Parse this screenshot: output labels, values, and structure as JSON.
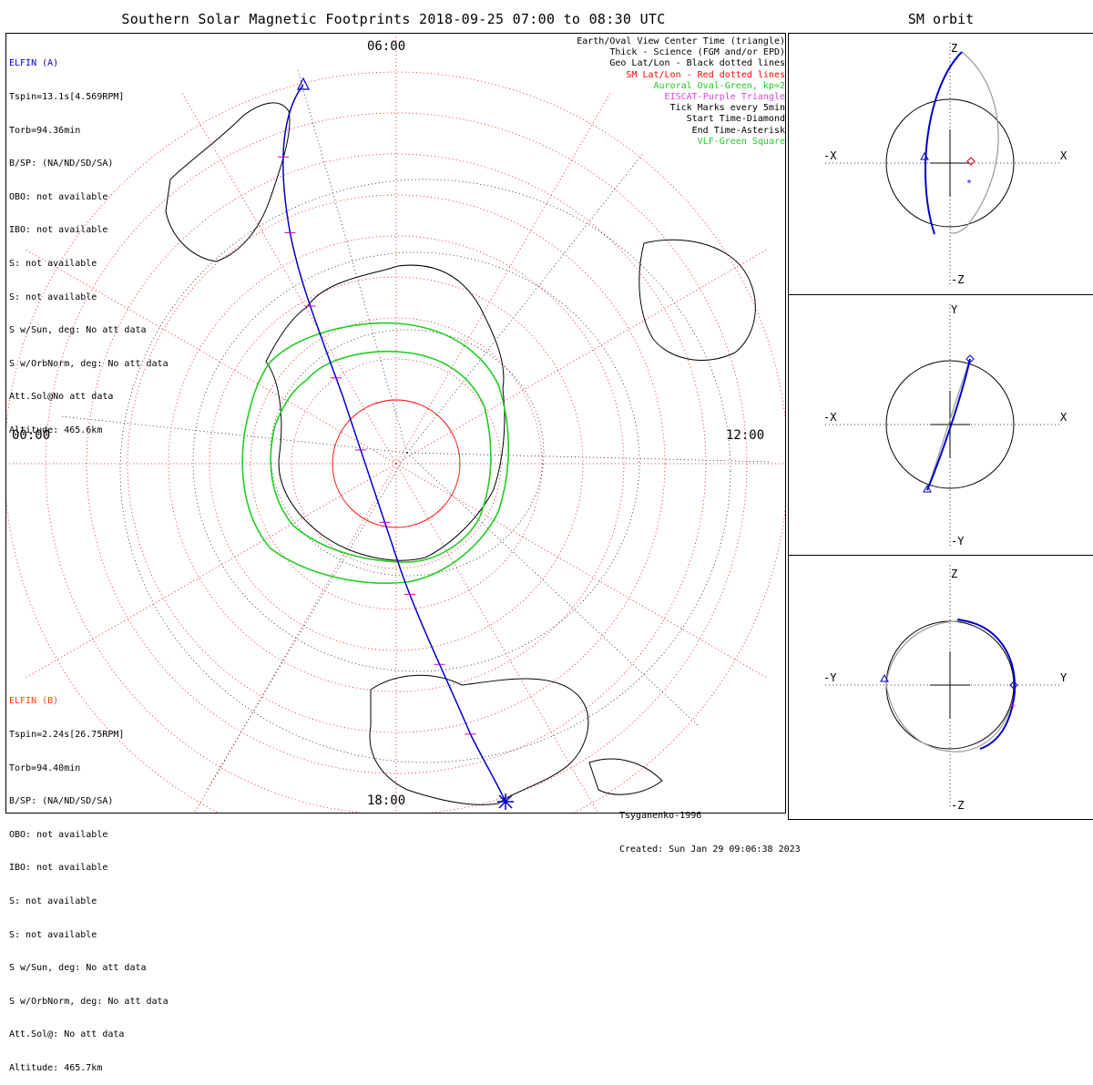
{
  "title": "Southern Solar Magnetic Footprints 2018-09-25 07:00 to 08:30 UTC",
  "orbit_title": "SM orbit",
  "mlt_labels": {
    "top": "06:00",
    "left": "00:00",
    "right": "12:00",
    "bottom": "18:00"
  },
  "elfin_a": {
    "name": "ELFIN (A)",
    "color": "#0000cc",
    "lines": [
      "Tspin=13.1s[4.569RPM]",
      "Torb=94.36min",
      "B/SP: (NA/ND/SD/SA)",
      "OBO: not available",
      "IBO: not available",
      "S: not available",
      "S: not available",
      "S w/Sun, deg: No att data",
      "S w/OrbNorm, deg: No att data",
      "Att.Sol@No att data",
      "Altitude: 465.6km"
    ]
  },
  "elfin_b": {
    "name": "ELFIN (B)",
    "color": "#ff4400",
    "lines": [
      "Tspin=2.24s[26.75RPM]",
      "Torb=94.40min",
      "B/SP: (NA/ND/SD/SA)",
      "OBO: not available",
      "IBO: not available",
      "S: not available",
      "S: not available",
      "S w/Sun, deg: No att data",
      "S w/OrbNorm, deg: No att data",
      "Att.Sol@: No att data",
      "Altitude: 465.7km"
    ]
  },
  "legend": [
    {
      "text": "Earth/Oval View Center Time (triangle)",
      "color": "#000000"
    },
    {
      "text": "Thick - Science (FGM and/or EPD)",
      "color": "#000000"
    },
    {
      "text": "Geo Lat/Lon - Black dotted lines",
      "color": "#000000"
    },
    {
      "text": "SM Lat/Lon - Red dotted lines",
      "color": "#ff0000"
    },
    {
      "text": "Auroral Oval-Green, kp=2",
      "color": "#22cc22"
    },
    {
      "text": "EISCAT-Purple Triangle",
      "color": "#dd44dd"
    },
    {
      "text": "Tick Marks every 5min",
      "color": "#000000"
    },
    {
      "text": "Start Time-Diamond",
      "color": "#000000"
    },
    {
      "text": "End Time-Asterisk",
      "color": "#000000"
    },
    {
      "text": "VLF-Green Square",
      "color": "#22cc22"
    }
  ],
  "credit": [
    "Tsyganenko-1996",
    "Created: Sun Jan 29 09:06:38 2023"
  ],
  "panels": [
    {
      "id": "xz",
      "top": "Z",
      "bottom": "-Z",
      "left": "-X",
      "right": "X"
    },
    {
      "id": "xy",
      "top": "Y",
      "bottom": "-Y",
      "left": "-X",
      "right": "X"
    },
    {
      "id": "yz",
      "top": "Z",
      "bottom": "-Z",
      "left": "-Y",
      "right": "Y"
    }
  ],
  "chart_data": {
    "type": "polar_map",
    "projection": "southern hemisphere, solar magnetic coordinates",
    "time_range": [
      "2018-09-25 07:00",
      "2018-09-25 08:30"
    ],
    "colors": {
      "track": "#0000cc",
      "ticks": "#cc00cc",
      "oval": "#22cc22",
      "sm_grid": "#ff0000",
      "geo_grid": "#000000"
    },
    "mlt_hours": [
      0,
      6,
      12,
      18
    ],
    "sm_latitude_rings_deg": [
      -80,
      -70,
      -60,
      -50,
      -40,
      -30,
      -20,
      -10,
      0
    ],
    "auroral_oval_kp": 2,
    "tick_interval_min": 5
  }
}
